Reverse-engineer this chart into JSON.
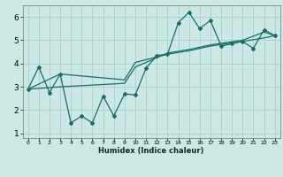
{
  "title": "",
  "xlabel": "Humidex (Indice chaleur)",
  "ylabel": "",
  "bg_color": "#cce8e4",
  "grid_color": "#aad0cc",
  "line_color": "#1a6e64",
  "xlim": [
    -0.5,
    23.5
  ],
  "ylim": [
    0.8,
    6.5
  ],
  "xticks": [
    0,
    1,
    2,
    3,
    4,
    5,
    6,
    7,
    8,
    9,
    10,
    11,
    12,
    13,
    14,
    15,
    16,
    17,
    18,
    19,
    20,
    21,
    22,
    23
  ],
  "yticks": [
    1,
    2,
    3,
    4,
    5,
    6
  ],
  "series1_x": [
    0,
    1,
    2,
    3,
    4,
    5,
    6,
    7,
    8,
    9,
    10,
    11,
    12,
    13,
    14,
    15,
    16,
    17,
    18,
    19,
    20,
    21,
    22,
    23
  ],
  "series1_y": [
    2.9,
    3.85,
    2.75,
    3.55,
    1.45,
    1.75,
    1.45,
    2.6,
    1.75,
    2.7,
    2.65,
    3.8,
    4.35,
    4.4,
    5.75,
    6.2,
    5.5,
    5.85,
    4.75,
    4.85,
    4.95,
    4.65,
    5.45,
    5.2
  ],
  "series2_x": [
    0,
    3,
    9,
    10,
    13,
    15,
    17,
    20,
    22,
    23
  ],
  "series2_y": [
    2.9,
    3.55,
    3.3,
    4.05,
    4.4,
    4.55,
    4.75,
    4.95,
    5.1,
    5.2
  ],
  "series3_x": [
    0,
    3,
    9,
    10,
    13,
    15,
    17,
    20,
    22,
    23
  ],
  "series3_y": [
    2.9,
    3.0,
    3.15,
    3.85,
    4.45,
    4.6,
    4.8,
    5.0,
    5.35,
    5.2
  ]
}
